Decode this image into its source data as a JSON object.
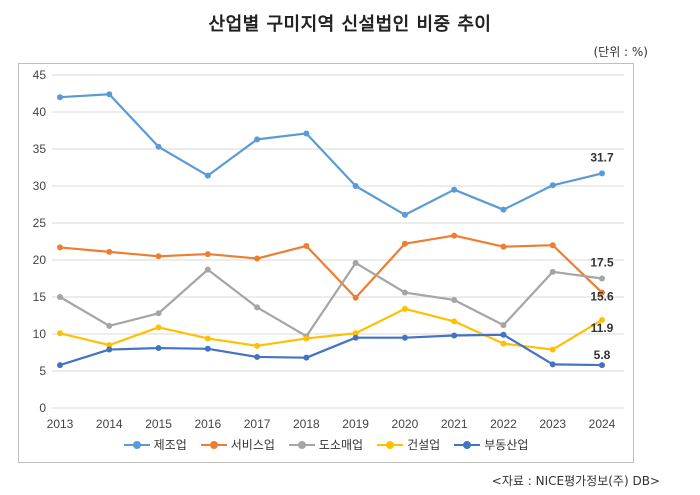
{
  "title": "산업별 구미지역 신설법인 비중 추이",
  "unit": "(단위 : %)",
  "source": "<자료 : NICE평가정보(주) DB>",
  "chart_data": {
    "type": "line",
    "x": [
      "2013",
      "2014",
      "2015",
      "2016",
      "2017",
      "2018",
      "2019",
      "2020",
      "2021",
      "2022",
      "2023",
      "2024"
    ],
    "ylim": [
      0,
      45
    ],
    "yticks": [
      0,
      5,
      10,
      15,
      20,
      25,
      30,
      35,
      40,
      45
    ],
    "grid": true,
    "legend_position": "bottom",
    "series": [
      {
        "name": "제조업",
        "color": "#5b9bd5",
        "values": [
          42.0,
          42.4,
          35.3,
          31.4,
          36.3,
          37.1,
          30.0,
          26.1,
          29.5,
          26.8,
          30.1,
          31.7
        ]
      },
      {
        "name": "서비스업",
        "color": "#ed7d31",
        "values": [
          21.7,
          21.1,
          20.5,
          20.8,
          20.2,
          21.9,
          14.9,
          22.2,
          23.3,
          21.8,
          22.0,
          15.6
        ]
      },
      {
        "name": "도소매업",
        "color": "#a5a5a5",
        "values": [
          15.0,
          11.1,
          12.8,
          18.7,
          13.6,
          9.7,
          19.6,
          15.6,
          14.6,
          11.2,
          18.4,
          17.5
        ]
      },
      {
        "name": "건설업",
        "color": "#ffc000",
        "values": [
          10.1,
          8.5,
          10.9,
          9.4,
          8.4,
          9.4,
          10.1,
          13.4,
          11.7,
          8.7,
          7.9,
          11.9
        ]
      },
      {
        "name": "부동산업",
        "color": "#4472c4",
        "values": [
          5.8,
          7.9,
          8.1,
          8.0,
          6.9,
          6.8,
          9.5,
          9.5,
          9.8,
          9.9,
          5.9,
          5.8
        ]
      }
    ],
    "data_labels": [
      {
        "series": "제조업",
        "x": "2024",
        "text": "31.7"
      },
      {
        "series": "도소매업",
        "x": "2024",
        "text": "17.5"
      },
      {
        "series": "서비스업",
        "x": "2024",
        "text": "15.6"
      },
      {
        "series": "건설업",
        "x": "2024",
        "text": "11.9"
      },
      {
        "series": "부동산업",
        "x": "2024",
        "text": "5.8"
      }
    ]
  }
}
